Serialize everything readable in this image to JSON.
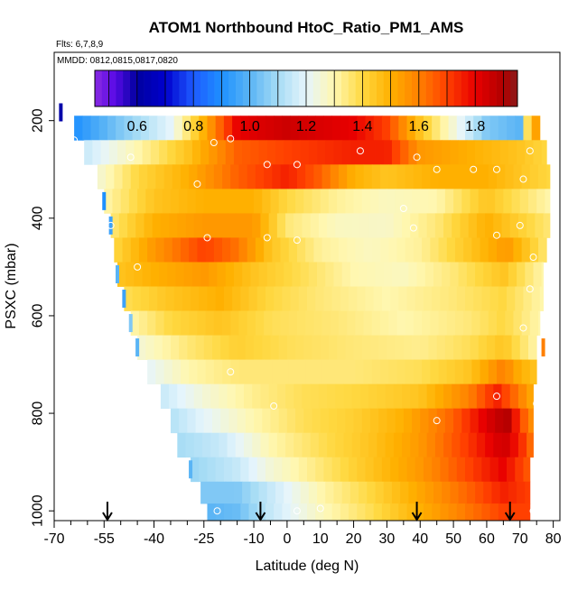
{
  "chart_data": {
    "type": "heatmap",
    "title": "ATOM1 Northbound HtoC_Ratio_PM1_AMS",
    "flights_note": "Flts: 6,7,8,9",
    "mmdd_note": "MMDD: 0812,0815,0817,0820",
    "xlabel": "Latitude (deg N)",
    "ylabel": "PSXC (mbar)",
    "xlim": [
      -70,
      82
    ],
    "ylim": [
      1020,
      60
    ],
    "x_ticks": [
      -70,
      -55,
      -40,
      -25,
      -10,
      0,
      10,
      20,
      30,
      40,
      50,
      60,
      70,
      80
    ],
    "x_tick_labels": [
      "-70",
      "-55",
      "-40",
      "-25",
      "-10",
      "0",
      "10",
      "20",
      "30",
      "40",
      "50",
      "60",
      "70",
      "80"
    ],
    "x_minor_ticks": [
      -65,
      -60,
      -50,
      -45,
      -35,
      -30,
      -20,
      -15,
      -5,
      5,
      15,
      25,
      35,
      45,
      55,
      65,
      75
    ],
    "y_ticks": [
      200,
      400,
      600,
      800,
      1000
    ],
    "y_tick_labels": [
      "200",
      "400",
      "600",
      "800",
      "1000"
    ],
    "colorbar": {
      "range": [
        0.45,
        1.95
      ],
      "ticks": [
        0.6,
        0.8,
        1.0,
        1.2,
        1.4,
        1.6,
        1.8
      ],
      "tick_labels": [
        "0.6",
        "0.8",
        "1.0",
        "1.2",
        "1.4",
        "1.6",
        "1.8"
      ],
      "stops": [
        {
          "v": 0.45,
          "c": "#8a2be2"
        },
        {
          "v": 0.52,
          "c": "#5a0ae6"
        },
        {
          "v": 0.6,
          "c": "#0000a0"
        },
        {
          "v": 0.7,
          "c": "#0000cd"
        },
        {
          "v": 0.8,
          "c": "#1e5aff"
        },
        {
          "v": 0.9,
          "c": "#1e90ff"
        },
        {
          "v": 1.0,
          "c": "#5ab4f5"
        },
        {
          "v": 1.1,
          "c": "#a6dcf5"
        },
        {
          "v": 1.2,
          "c": "#e6f5fc"
        },
        {
          "v": 1.3,
          "c": "#fff7b0"
        },
        {
          "v": 1.4,
          "c": "#ffd840"
        },
        {
          "v": 1.5,
          "c": "#ffb000"
        },
        {
          "v": 1.6,
          "c": "#ff8000"
        },
        {
          "v": 1.7,
          "c": "#ff4000"
        },
        {
          "v": 1.8,
          "c": "#e80000"
        },
        {
          "v": 1.9,
          "c": "#b00000"
        },
        {
          "v": 1.95,
          "c": "#8b1a1a"
        }
      ]
    },
    "pressure_rows": [
      {
        "p": 215,
        "lat_min": -64,
        "lat_max": 76,
        "points": [
          [
            -64,
            0.9
          ],
          [
            -50,
            1.05
          ],
          [
            -35,
            1.2
          ],
          [
            -25,
            1.5
          ],
          [
            -15,
            1.8
          ],
          [
            0,
            1.85
          ],
          [
            20,
            1.8
          ],
          [
            30,
            1.7
          ],
          [
            40,
            1.45
          ],
          [
            50,
            1.25
          ],
          [
            60,
            1.05
          ],
          [
            70,
            1.0
          ],
          [
            73,
            1.5
          ],
          [
            76,
            1.55
          ]
        ]
      },
      {
        "p": 265,
        "lat_min": -61,
        "lat_max": 78,
        "points": [
          [
            -61,
            1.15
          ],
          [
            -45,
            1.3
          ],
          [
            -30,
            1.45
          ],
          [
            -15,
            1.65
          ],
          [
            0,
            1.7
          ],
          [
            20,
            1.75
          ],
          [
            30,
            1.75
          ],
          [
            40,
            1.55
          ],
          [
            55,
            1.5
          ],
          [
            70,
            1.45
          ],
          [
            78,
            1.4
          ]
        ]
      },
      {
        "p": 315,
        "lat_min": -57,
        "lat_max": 79,
        "points": [
          [
            -57,
            1.25
          ],
          [
            -45,
            1.4
          ],
          [
            -30,
            1.5
          ],
          [
            -15,
            1.65
          ],
          [
            0,
            1.75
          ],
          [
            10,
            1.65
          ],
          [
            20,
            1.5
          ],
          [
            30,
            1.45
          ],
          [
            45,
            1.5
          ],
          [
            60,
            1.5
          ],
          [
            79,
            1.4
          ]
        ]
      },
      {
        "p": 365,
        "lat_min": -55,
        "lat_max": 79,
        "points": [
          [
            -55,
            1.3
          ],
          [
            -40,
            1.45
          ],
          [
            -25,
            1.5
          ],
          [
            -10,
            1.5
          ],
          [
            0,
            1.4
          ],
          [
            15,
            1.32
          ],
          [
            30,
            1.28
          ],
          [
            45,
            1.3
          ],
          [
            60,
            1.45
          ],
          [
            79,
            1.3
          ]
        ]
      },
      {
        "p": 415,
        "lat_min": -53,
        "lat_max": 79,
        "points": [
          [
            -53,
            1.35
          ],
          [
            -40,
            1.5
          ],
          [
            -25,
            1.55
          ],
          [
            -10,
            1.55
          ],
          [
            0,
            1.35
          ],
          [
            15,
            1.28
          ],
          [
            30,
            1.27
          ],
          [
            45,
            1.35
          ],
          [
            60,
            1.5
          ],
          [
            79,
            1.35
          ]
        ]
      },
      {
        "p": 465,
        "lat_min": -52,
        "lat_max": 78,
        "points": [
          [
            -52,
            1.4
          ],
          [
            -40,
            1.55
          ],
          [
            -25,
            1.7
          ],
          [
            -15,
            1.62
          ],
          [
            -5,
            1.45
          ],
          [
            10,
            1.32
          ],
          [
            25,
            1.28
          ],
          [
            40,
            1.32
          ],
          [
            55,
            1.45
          ],
          [
            66,
            1.55
          ],
          [
            78,
            1.35
          ]
        ]
      },
      {
        "p": 515,
        "lat_min": -51,
        "lat_max": 77,
        "points": [
          [
            -51,
            1.45
          ],
          [
            -40,
            1.5
          ],
          [
            -25,
            1.55
          ],
          [
            -10,
            1.45
          ],
          [
            5,
            1.38
          ],
          [
            20,
            1.3
          ],
          [
            35,
            1.28
          ],
          [
            50,
            1.35
          ],
          [
            65,
            1.45
          ],
          [
            77,
            1.3
          ]
        ]
      },
      {
        "p": 565,
        "lat_min": -49,
        "lat_max": 77,
        "points": [
          [
            -49,
            1.38
          ],
          [
            -35,
            1.45
          ],
          [
            -20,
            1.5
          ],
          [
            -5,
            1.4
          ],
          [
            10,
            1.35
          ],
          [
            30,
            1.3
          ],
          [
            50,
            1.35
          ],
          [
            65,
            1.4
          ],
          [
            77,
            1.3
          ]
        ]
      },
      {
        "p": 615,
        "lat_min": -47,
        "lat_max": 76,
        "points": [
          [
            -47,
            1.3
          ],
          [
            -35,
            1.4
          ],
          [
            -20,
            1.45
          ],
          [
            -5,
            1.38
          ],
          [
            15,
            1.35
          ],
          [
            35,
            1.3
          ],
          [
            55,
            1.35
          ],
          [
            65,
            1.4
          ],
          [
            76,
            1.3
          ]
        ]
      },
      {
        "p": 665,
        "lat_min": -45,
        "lat_max": 75,
        "points": [
          [
            -45,
            1.25
          ],
          [
            -30,
            1.35
          ],
          [
            -15,
            1.42
          ],
          [
            0,
            1.38
          ],
          [
            20,
            1.35
          ],
          [
            40,
            1.33
          ],
          [
            55,
            1.38
          ],
          [
            65,
            1.45
          ],
          [
            75,
            1.3
          ]
        ]
      },
      {
        "p": 715,
        "lat_min": -42,
        "lat_max": 75,
        "points": [
          [
            -42,
            1.2
          ],
          [
            -30,
            1.3
          ],
          [
            -15,
            1.35
          ],
          [
            0,
            1.35
          ],
          [
            20,
            1.35
          ],
          [
            40,
            1.38
          ],
          [
            55,
            1.45
          ],
          [
            65,
            1.6
          ],
          [
            70,
            1.5
          ],
          [
            75,
            1.45
          ]
        ]
      },
      {
        "p": 765,
        "lat_min": -38,
        "lat_max": 74,
        "points": [
          [
            -38,
            1.15
          ],
          [
            -25,
            1.25
          ],
          [
            -10,
            1.33
          ],
          [
            5,
            1.38
          ],
          [
            20,
            1.4
          ],
          [
            40,
            1.45
          ],
          [
            55,
            1.6
          ],
          [
            63,
            1.75
          ],
          [
            70,
            1.6
          ],
          [
            74,
            1.5
          ]
        ]
      },
      {
        "p": 815,
        "lat_min": -35,
        "lat_max": 74,
        "points": [
          [
            -35,
            1.12
          ],
          [
            -25,
            1.2
          ],
          [
            -10,
            1.3
          ],
          [
            5,
            1.38
          ],
          [
            20,
            1.42
          ],
          [
            35,
            1.5
          ],
          [
            50,
            1.65
          ],
          [
            60,
            1.82
          ],
          [
            66,
            1.9
          ],
          [
            70,
            1.7
          ],
          [
            74,
            1.55
          ]
        ]
      },
      {
        "p": 865,
        "lat_min": -33,
        "lat_max": 74,
        "points": [
          [
            -33,
            1.1
          ],
          [
            -20,
            1.15
          ],
          [
            -5,
            1.3
          ],
          [
            10,
            1.38
          ],
          [
            25,
            1.45
          ],
          [
            40,
            1.55
          ],
          [
            55,
            1.72
          ],
          [
            65,
            1.85
          ],
          [
            70,
            1.75
          ],
          [
            74,
            1.6
          ]
        ]
      },
      {
        "p": 915,
        "lat_min": -29,
        "lat_max": 73,
        "points": [
          [
            -29,
            1.08
          ],
          [
            -15,
            1.15
          ],
          [
            -5,
            1.25
          ],
          [
            10,
            1.35
          ],
          [
            25,
            1.45
          ],
          [
            40,
            1.55
          ],
          [
            55,
            1.7
          ],
          [
            65,
            1.8
          ],
          [
            73,
            1.65
          ]
        ]
      },
      {
        "p": 965,
        "lat_min": -26,
        "lat_max": 73,
        "points": [
          [
            -26,
            1.05
          ],
          [
            -15,
            1.05
          ],
          [
            -5,
            1.15
          ],
          [
            10,
            1.3
          ],
          [
            25,
            1.4
          ],
          [
            40,
            1.52
          ],
          [
            55,
            1.65
          ],
          [
            65,
            1.75
          ],
          [
            73,
            1.7
          ]
        ]
      },
      {
        "p": 1005,
        "lat_min": -24,
        "lat_max": 73,
        "points": [
          [
            -24,
            1.0
          ],
          [
            -15,
            1.02
          ],
          [
            -5,
            1.15
          ],
          [
            10,
            1.28
          ],
          [
            25,
            1.38
          ],
          [
            40,
            1.5
          ],
          [
            55,
            1.62
          ],
          [
            65,
            1.7
          ],
          [
            73,
            1.7
          ]
        ]
      }
    ],
    "edge_bars": [
      {
        "lat": -68,
        "p": 183,
        "v": 0.62
      },
      {
        "lat": -55,
        "p": 365,
        "v": 0.9
      },
      {
        "lat": -53,
        "p": 415,
        "v": 0.95
      },
      {
        "lat": -51,
        "p": 515,
        "v": 1.0
      },
      {
        "lat": -49,
        "p": 565,
        "v": 0.95
      },
      {
        "lat": -47,
        "p": 615,
        "v": 1.05
      },
      {
        "lat": -45,
        "p": 665,
        "v": 1.0
      },
      {
        "lat": -29,
        "p": 915,
        "v": 1.0
      },
      {
        "lat": 77,
        "p": 665,
        "v": 1.6
      }
    ],
    "observations": [
      {
        "lat": -64,
        "p": 240
      },
      {
        "lat": -22,
        "p": 245
      },
      {
        "lat": -17,
        "p": 237
      },
      {
        "lat": -47,
        "p": 275
      },
      {
        "lat": -6,
        "p": 290
      },
      {
        "lat": 3,
        "p": 290
      },
      {
        "lat": 22,
        "p": 262
      },
      {
        "lat": 39,
        "p": 275
      },
      {
        "lat": 45,
        "p": 300
      },
      {
        "lat": 56,
        "p": 300
      },
      {
        "lat": 63,
        "p": 300
      },
      {
        "lat": 71,
        "p": 320
      },
      {
        "lat": 73,
        "p": 262
      },
      {
        "lat": -27,
        "p": 330
      },
      {
        "lat": 35,
        "p": 380
      },
      {
        "lat": -53,
        "p": 415
      },
      {
        "lat": 38,
        "p": 420
      },
      {
        "lat": 70,
        "p": 415
      },
      {
        "lat": -24,
        "p": 440
      },
      {
        "lat": -6,
        "p": 440
      },
      {
        "lat": 3,
        "p": 445
      },
      {
        "lat": 63,
        "p": 435
      },
      {
        "lat": -45,
        "p": 500
      },
      {
        "lat": 74,
        "p": 480
      },
      {
        "lat": 73,
        "p": 545
      },
      {
        "lat": 71,
        "p": 625
      },
      {
        "lat": -17,
        "p": 715
      },
      {
        "lat": 63,
        "p": 765
      },
      {
        "lat": 75,
        "p": 780
      },
      {
        "lat": -4,
        "p": 785
      },
      {
        "lat": 45,
        "p": 815
      },
      {
        "lat": -21,
        "p": 1000
      },
      {
        "lat": 3,
        "p": 1000
      },
      {
        "lat": 10,
        "p": 995
      },
      {
        "lat": 74,
        "p": 1000
      }
    ],
    "arrows": [
      -54,
      -8,
      39,
      67
    ]
  }
}
